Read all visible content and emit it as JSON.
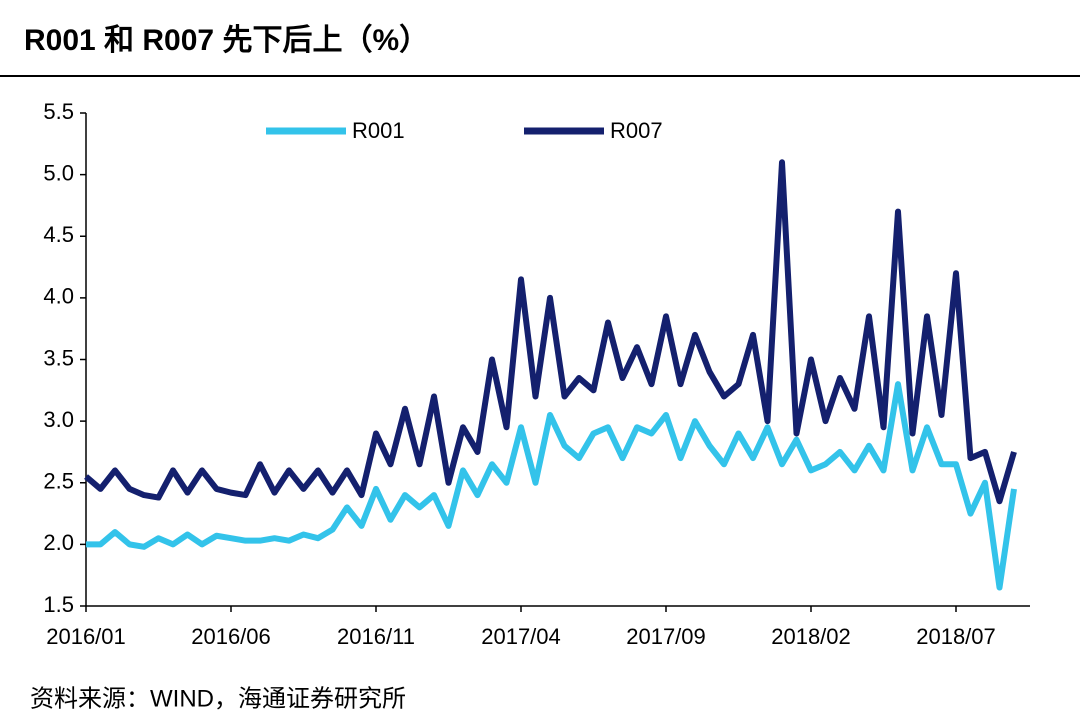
{
  "chart_data": {
    "type": "line",
    "title": "R001 和 R007 先下后上（%）",
    "source": "资料来源：WIND，海通证券研究所",
    "categories": [
      "2016/01",
      null,
      null,
      null,
      null,
      null,
      null,
      null,
      null,
      null,
      "2016/06",
      null,
      null,
      null,
      null,
      null,
      null,
      null,
      null,
      null,
      "2016/11",
      null,
      null,
      null,
      null,
      null,
      null,
      null,
      null,
      null,
      "2017/04",
      null,
      null,
      null,
      null,
      null,
      null,
      null,
      null,
      null,
      "2017/09",
      null,
      null,
      null,
      null,
      null,
      null,
      null,
      null,
      null,
      "2018/02",
      null,
      null,
      null,
      null,
      null,
      null,
      null,
      null,
      null,
      "2018/07",
      null,
      null,
      null,
      null
    ],
    "series": [
      {
        "name": "R001",
        "color": "#33c3ea",
        "values": [
          2.0,
          2.0,
          2.1,
          2.0,
          1.98,
          2.05,
          2.0,
          2.08,
          2.0,
          2.07,
          2.05,
          2.03,
          2.03,
          2.05,
          2.03,
          2.08,
          2.05,
          2.12,
          2.3,
          2.15,
          2.45,
          2.2,
          2.4,
          2.3,
          2.4,
          2.15,
          2.6,
          2.4,
          2.65,
          2.5,
          2.95,
          2.5,
          3.05,
          2.8,
          2.7,
          2.9,
          2.95,
          2.7,
          2.95,
          2.9,
          3.05,
          2.7,
          3.0,
          2.8,
          2.65,
          2.9,
          2.7,
          2.95,
          2.65,
          2.85,
          2.6,
          2.65,
          2.75,
          2.6,
          2.8,
          2.6,
          3.3,
          2.6,
          2.95,
          2.65,
          2.65,
          2.25,
          2.5,
          1.65,
          2.45
        ]
      },
      {
        "name": "R007",
        "color": "#14206e",
        "values": [
          2.55,
          2.45,
          2.6,
          2.45,
          2.4,
          2.38,
          2.6,
          2.42,
          2.6,
          2.45,
          2.42,
          2.4,
          2.65,
          2.42,
          2.6,
          2.45,
          2.6,
          2.42,
          2.6,
          2.4,
          2.9,
          2.65,
          3.1,
          2.65,
          3.2,
          2.5,
          2.95,
          2.75,
          3.5,
          2.95,
          4.15,
          3.2,
          4.0,
          3.2,
          3.35,
          3.25,
          3.8,
          3.35,
          3.6,
          3.3,
          3.85,
          3.3,
          3.7,
          3.4,
          3.2,
          3.3,
          3.7,
          3.0,
          5.1,
          2.9,
          3.5,
          3.0,
          3.35,
          3.1,
          3.85,
          2.95,
          4.7,
          2.9,
          3.85,
          3.05,
          4.2,
          2.7,
          2.75,
          2.35,
          2.75
        ]
      }
    ],
    "ylim": [
      1.5,
      5.5
    ],
    "yticks": [
      1.5,
      {
        "value": 2.0,
        "label": "2.0"
      },
      2.5,
      {
        "value": 3.0,
        "label": "3.0"
      },
      3.5,
      {
        "value": 4.0,
        "label": "4.0"
      },
      4.5,
      {
        "value": 5.0,
        "label": "5.0"
      },
      5.5
    ],
    "grid": false
  }
}
